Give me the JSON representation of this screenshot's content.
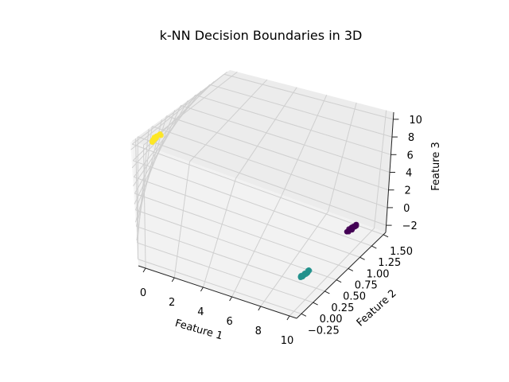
{
  "chart_data": {
    "type": "scatter3d",
    "title": "k-NN Decision Boundaries in 3D",
    "xlabel": "Feature 1",
    "ylabel": "Feature 2",
    "zlabel": "Feature 3",
    "xlim": [
      -0.5,
      10.5
    ],
    "ylim": [
      -0.35,
      1.55
    ],
    "zlim": [
      -2.8,
      10.8
    ],
    "x_ticks": [
      0,
      2,
      4,
      6,
      8,
      10
    ],
    "x_tick_labels": [
      "0",
      "2",
      "4",
      "6",
      "8",
      "10"
    ],
    "y_ticks": [
      -0.25,
      0.0,
      0.25,
      0.5,
      0.75,
      1.0,
      1.25,
      1.5
    ],
    "y_tick_labels": [
      "−0.25",
      "0.00",
      "0.25",
      "0.50",
      "0.75",
      "1.00",
      "1.25",
      "1.50"
    ],
    "z_ticks": [
      -2,
      0,
      2,
      4,
      6,
      8,
      10
    ],
    "z_tick_labels": [
      "−2",
      "0",
      "2",
      "4",
      "6",
      "8",
      "10"
    ],
    "grid": true,
    "legend": "none",
    "clusters": [
      {
        "color": "#fde725",
        "center": [
          0.0,
          0.0,
          10.0
        ]
      },
      {
        "color": "#21918c",
        "center": [
          10.0,
          0.0,
          0.0
        ]
      },
      {
        "color": "#440154",
        "center": [
          10.0,
          1.0,
          0.0
        ]
      }
    ]
  }
}
